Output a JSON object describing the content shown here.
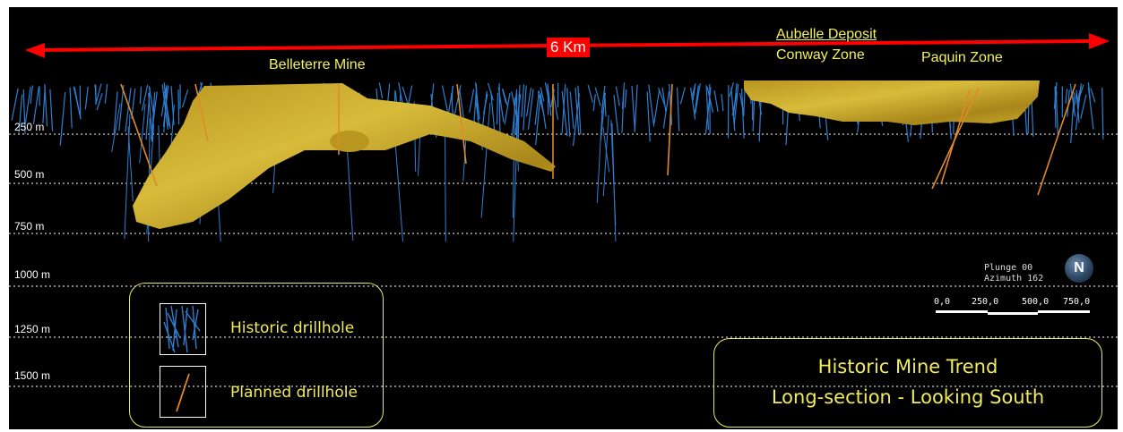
{
  "scale_label": "6 Km",
  "zones": {
    "belleterre": "Belleterre Mine",
    "aubelle": "Aubelle Deposit",
    "conway": "Conway Zone",
    "paquin": "Paquin Zone"
  },
  "depth_labels": [
    "250 m",
    "500 m",
    "750 m",
    "1000 m",
    "1250 m",
    "1500 m"
  ],
  "legend": {
    "historic": "Historic drillhole",
    "planned": "Planned drillhole"
  },
  "orientation": {
    "plunge": "Plunge 00",
    "azimuth": "Azimuth 162",
    "compass": "N"
  },
  "scale_bar": [
    "0,0",
    "250,0",
    "500,0",
    "750,0"
  ],
  "title": {
    "line1": "Historic Mine Trend",
    "line2": "Long-section - Looking South"
  },
  "colors": {
    "background": "#000000",
    "orebody": "#c9a92a",
    "historic_drillhole": "#2e7fd1",
    "planned_drillhole": "#e08a28",
    "arrow": "#ff0000",
    "label_text": "#f2f25a"
  },
  "icons": [
    "compass-icon",
    "arrow-icon"
  ]
}
